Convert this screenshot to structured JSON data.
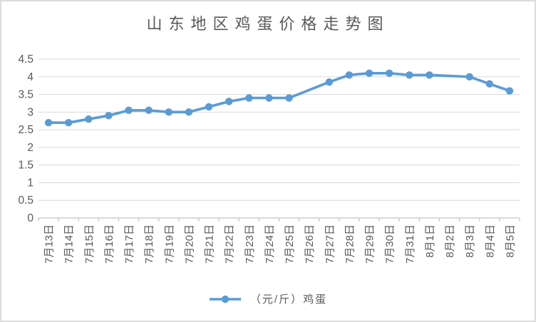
{
  "window": {
    "background": "#ffffff",
    "border_color": "#dcdcdc"
  },
  "chart_data": {
    "type": "line",
    "title": "山东地区鸡蛋价格走势图",
    "categories": [
      "7月13日",
      "7月14日",
      "7月15日",
      "7月16日",
      "7月17日",
      "7月18日",
      "7月19日",
      "7月20日",
      "7月21日",
      "7月22日",
      "7月23日",
      "7月24日",
      "7月25日",
      "7月26日",
      "7月27日",
      "7月28日",
      "7月29日",
      "7月30日",
      "7月31日",
      "8月1日",
      "8月2日",
      "8月3日",
      "8月4日",
      "8月5日"
    ],
    "series": [
      {
        "name": "（元/斤）鸡蛋",
        "color": "#5B9BD5",
        "values": [
          2.7,
          2.7,
          2.8,
          2.9,
          3.05,
          3.05,
          3.0,
          3.0,
          3.15,
          3.3,
          3.4,
          3.4,
          3.4,
          null,
          3.85,
          4.05,
          4.1,
          4.1,
          4.05,
          4.05,
          null,
          4.0,
          3.8,
          3.6
        ]
      }
    ],
    "ylim": [
      0,
      4.5
    ],
    "yticks": [
      0,
      0.5,
      1,
      1.5,
      2,
      2.5,
      3,
      3.5,
      4,
      4.5
    ],
    "xlabel": "",
    "ylabel": "",
    "grid": true,
    "legend_position": "bottom",
    "legend_items": [
      {
        "label": "（元/斤）鸡蛋",
        "marker": "line-with-circle",
        "color": "#5B9BD5"
      }
    ],
    "style": {
      "gridline_color": "#D9D9D9",
      "axis_color": "#C3C3C3",
      "label_color": "#595959",
      "title_color": "#595959"
    },
    "notes": "no markers at 7月26日 and 8月2日; line interpolates through those dates"
  }
}
